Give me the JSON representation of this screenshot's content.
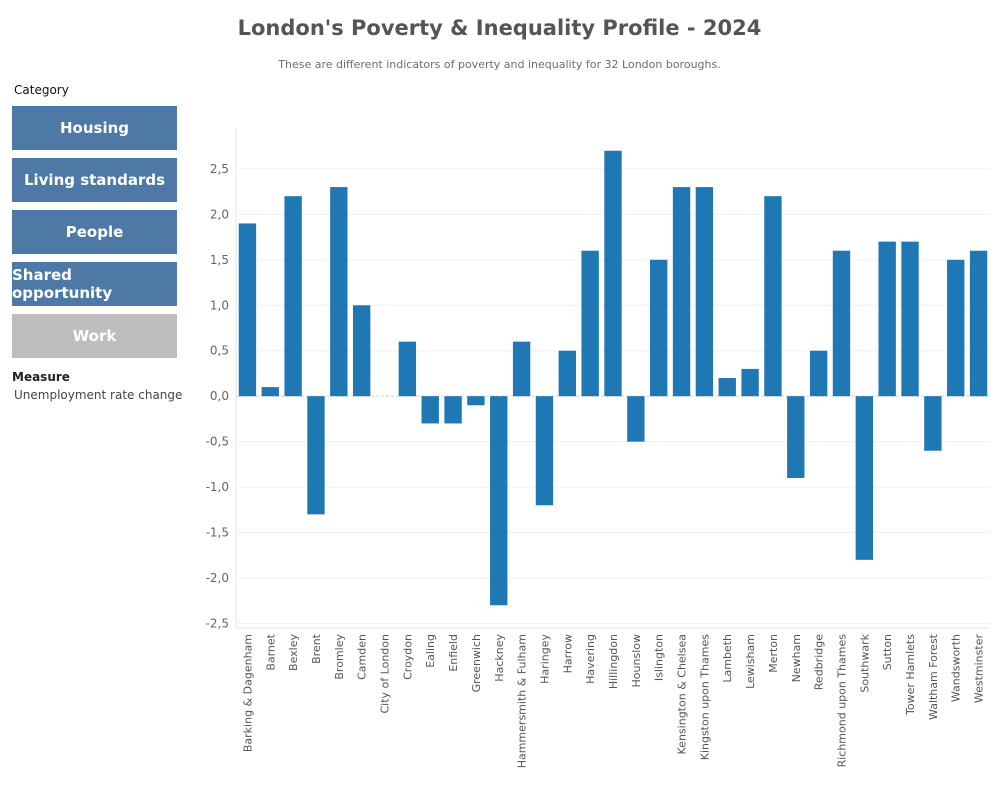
{
  "header": {
    "title": "London's Poverty & Inequality Profile - 2024",
    "subtitle": "These are different indicators of poverty and inequality for 32 London boroughs."
  },
  "sidebar": {
    "category_label": "Category",
    "buttons": [
      {
        "label": "Housing",
        "color": "#4e79a7"
      },
      {
        "label": "Living standards",
        "color": "#4e79a7"
      },
      {
        "label": "People",
        "color": "#4e79a7"
      },
      {
        "label": "Shared opportunity",
        "color": "#4e79a7"
      },
      {
        "label": "Work",
        "color": "#bdbdbd"
      }
    ],
    "measure_label": "Measure",
    "measure_value": "Unemployment rate change"
  },
  "chart_data": {
    "type": "bar",
    "bar_color": "#1f77b4",
    "ylim": [
      -2.55,
      2.95
    ],
    "yticks": [
      2.5,
      2.0,
      1.5,
      1.0,
      0.5,
      0.0,
      -0.5,
      -1.0,
      -1.5,
      -2.0,
      -2.5
    ],
    "ytick_labels": [
      "2,5",
      "2,0",
      "1,5",
      "1,0",
      "0,5",
      "0,0",
      "-0,5",
      "-1,0",
      "-1,5",
      "-2,0",
      "-2,5"
    ],
    "grid": true,
    "categories": [
      "Barking & Dagenham",
      "Barnet",
      "Bexley",
      "Brent",
      "Bromley",
      "Camden",
      "City of London",
      "Croydon",
      "Ealing",
      "Enfield",
      "Greenwich",
      "Hackney",
      "Hammersmith & Fulham",
      "Haringey",
      "Harrow",
      "Havering",
      "Hillingdon",
      "Hounslow",
      "Islington",
      "Kensington & Chelsea",
      "Kingston upon Thames",
      "Lambeth",
      "Lewisham",
      "Merton",
      "Newham",
      "Redbridge",
      "Richmond upon Thames",
      "Southwark",
      "Sutton",
      "Tower Hamlets",
      "Waltham Forest",
      "Wandsworth",
      "Westminster"
    ],
    "values": [
      1.9,
      0.1,
      2.2,
      -1.3,
      2.3,
      1.0,
      0.0,
      0.6,
      -0.3,
      -0.3,
      -0.1,
      -2.3,
      0.6,
      -1.2,
      0.5,
      1.6,
      2.7,
      -0.5,
      1.5,
      2.3,
      2.3,
      0.2,
      0.3,
      2.2,
      -0.9,
      0.5,
      1.6,
      -1.8,
      1.7,
      1.7,
      -0.6,
      1.5,
      1.6
    ]
  }
}
